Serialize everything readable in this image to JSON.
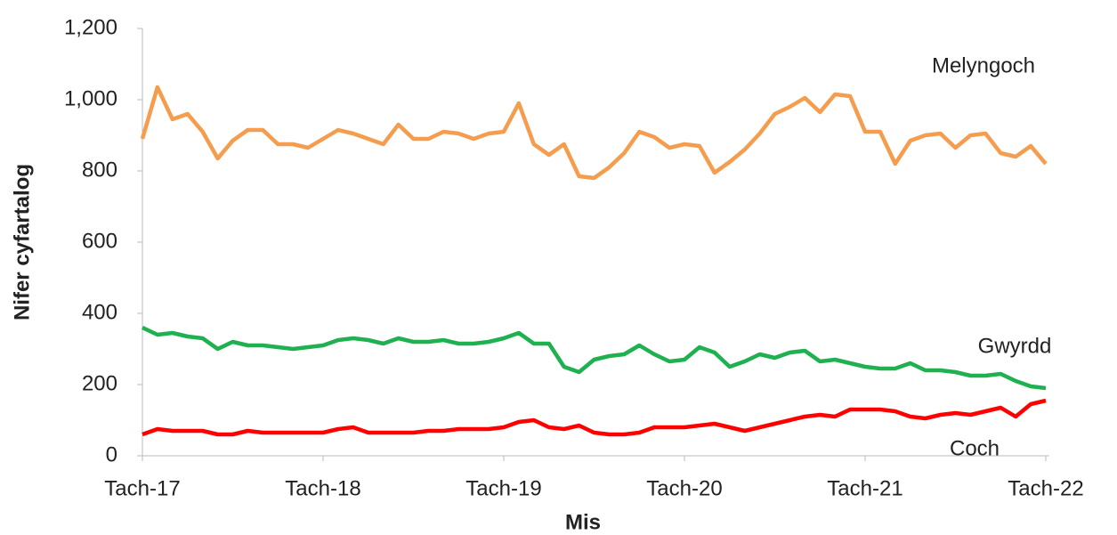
{
  "chart_data": {
    "type": "line",
    "y_label": "Nifer cyfartalog",
    "x_label": "Mis",
    "categories": [
      "Tach-17",
      null,
      null,
      null,
      null,
      null,
      null,
      null,
      null,
      null,
      null,
      null,
      "Tach-18",
      null,
      null,
      null,
      null,
      null,
      null,
      null,
      null,
      null,
      null,
      null,
      "Tach-19",
      null,
      null,
      null,
      null,
      null,
      null,
      null,
      null,
      null,
      null,
      null,
      "Tach-20",
      null,
      null,
      null,
      null,
      null,
      null,
      null,
      null,
      null,
      null,
      null,
      "Tach-21",
      null,
      null,
      null,
      null,
      null,
      null,
      null,
      null,
      null,
      null,
      null,
      "Tach-22"
    ],
    "series": [
      {
        "name": "Melyngoch",
        "color": "#f59d4e",
        "values": [
          890,
          1035,
          945,
          960,
          910,
          835,
          885,
          915,
          915,
          875,
          875,
          865,
          890,
          915,
          905,
          890,
          875,
          930,
          890,
          890,
          910,
          905,
          890,
          905,
          910,
          990,
          875,
          845,
          875,
          785,
          780,
          810,
          850,
          910,
          895,
          865,
          875,
          870,
          795,
          825,
          860,
          905,
          960,
          980,
          1005,
          965,
          1015,
          1010,
          910,
          910,
          820,
          885,
          900,
          905,
          865,
          900,
          905,
          850,
          840,
          870,
          820
        ]
      },
      {
        "name": "Gwyrdd",
        "color": "#1fb050",
        "values": [
          360,
          340,
          345,
          335,
          330,
          300,
          320,
          310,
          310,
          305,
          300,
          305,
          310,
          325,
          330,
          325,
          315,
          330,
          320,
          320,
          325,
          315,
          315,
          320,
          330,
          345,
          315,
          315,
          250,
          235,
          270,
          280,
          285,
          310,
          285,
          265,
          270,
          305,
          290,
          250,
          265,
          285,
          275,
          290,
          295,
          265,
          270,
          260,
          250,
          245,
          245,
          260,
          240,
          240,
          235,
          225,
          225,
          230,
          210,
          195,
          190
        ]
      },
      {
        "name": "Coch",
        "color": "#ff0000",
        "values": [
          60,
          75,
          70,
          70,
          70,
          60,
          60,
          70,
          65,
          65,
          65,
          65,
          65,
          75,
          80,
          65,
          65,
          65,
          65,
          70,
          70,
          75,
          75,
          75,
          80,
          95,
          100,
          80,
          75,
          85,
          65,
          60,
          60,
          65,
          80,
          80,
          80,
          85,
          90,
          80,
          70,
          80,
          90,
          100,
          110,
          115,
          110,
          130,
          130,
          130,
          125,
          110,
          105,
          115,
          120,
          115,
          125,
          135,
          110,
          145,
          155
        ]
      }
    ],
    "ylim": [
      0,
      1200
    ],
    "yticks": [
      0,
      200,
      400,
      600,
      800,
      {
        "value": 1000,
        "label": "1,000"
      },
      {
        "value": 1200,
        "label": "1,200"
      }
    ],
    "grid": false
  }
}
